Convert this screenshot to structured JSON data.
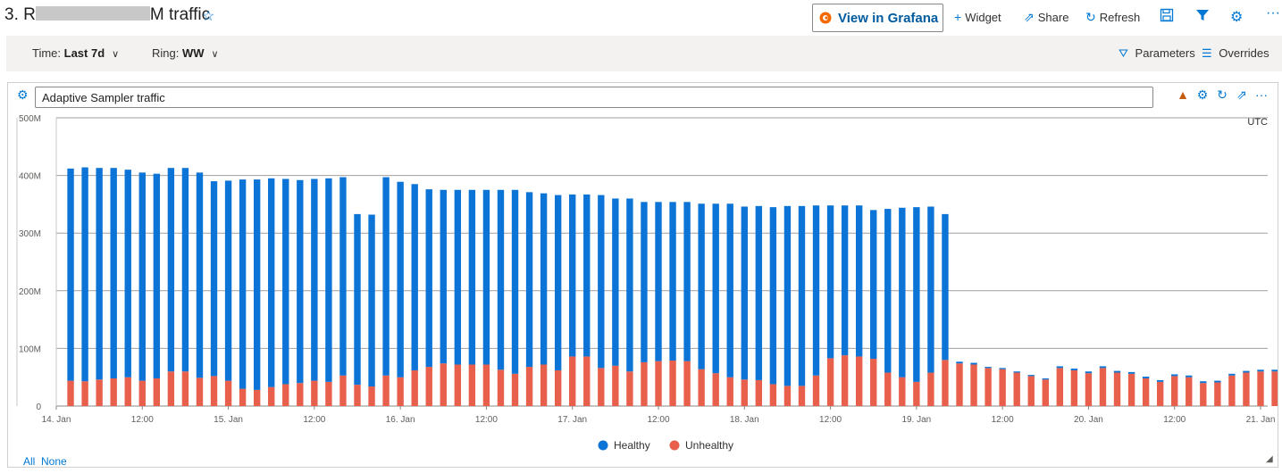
{
  "dashboard": {
    "title_prefix": "3. R",
    "title_suffix": "M traffic",
    "star_icon": "star-outline-icon"
  },
  "toolbar": {
    "grafana_label": "View in Grafana",
    "widget_label": "Widget",
    "share_label": "Share",
    "refresh_label": "Refresh"
  },
  "params": {
    "time_label": "Time: ",
    "time_value": "Last 7d",
    "ring_label": "Ring: ",
    "ring_value": "WW",
    "parameters_label": "Parameters",
    "overrides_label": "Overrides"
  },
  "panel": {
    "title": "Adaptive Sampler traffic",
    "timezone": "UTC",
    "select_all": "All",
    "select_none": "None"
  },
  "colors": {
    "healthy": "#0b74d6",
    "unhealthy": "#e8604c",
    "accent": "#0078d4"
  },
  "chart_data": {
    "type": "bar",
    "stacked": true,
    "interval_hours": 2,
    "x_start": "14. Jan 00:00",
    "ylim": [
      0,
      500
    ],
    "y_unit": "M",
    "y_ticks": [
      "0",
      "100M",
      "200M",
      "300M",
      "400M",
      "500M"
    ],
    "x_ticks": [
      {
        "label": "14. Jan",
        "hour": 0
      },
      {
        "label": "12:00",
        "hour": 12
      },
      {
        "label": "15. Jan",
        "hour": 24
      },
      {
        "label": "12:00",
        "hour": 36
      },
      {
        "label": "16. Jan",
        "hour": 48
      },
      {
        "label": "12:00",
        "hour": 60
      },
      {
        "label": "17. Jan",
        "hour": 72
      },
      {
        "label": "12:00",
        "hour": 84
      },
      {
        "label": "18. Jan",
        "hour": 96
      },
      {
        "label": "12:00",
        "hour": 108
      },
      {
        "label": "19. Jan",
        "hour": 120
      },
      {
        "label": "12:00",
        "hour": 132
      },
      {
        "label": "20. Jan",
        "hour": 144
      },
      {
        "label": "12:00",
        "hour": 156
      },
      {
        "label": "21. Jan",
        "hour": 168
      }
    ],
    "grid": true,
    "legend_position": "bottom-center",
    "series": [
      {
        "name": "Unhealthy",
        "color": "#e8604c",
        "values": [
          44,
          43,
          46,
          48,
          50,
          44,
          48,
          60,
          60,
          49,
          52,
          44,
          30,
          28,
          33,
          38,
          40,
          44,
          42,
          53,
          37,
          34,
          53,
          50,
          62,
          68,
          74,
          72,
          72,
          72,
          63,
          56,
          68,
          72,
          62,
          86,
          86,
          66,
          70,
          60,
          76,
          78,
          79,
          78,
          64,
          57,
          50,
          46,
          45,
          38,
          35,
          35,
          53,
          83,
          88,
          86,
          82,
          58,
          50,
          42,
          58,
          80,
          74,
          72,
          66,
          64,
          58,
          52,
          46,
          66,
          62,
          57,
          66,
          58,
          56,
          48,
          42,
          52,
          50,
          40,
          41,
          53,
          58,
          60,
          60,
          46
        ]
      },
      {
        "name": "Healthy",
        "color": "#0b74d6",
        "values": [
          368,
          371,
          367,
          365,
          360,
          361,
          355,
          353,
          353,
          356,
          338,
          347,
          363,
          365,
          362,
          356,
          352,
          350,
          353,
          344,
          296,
          298,
          344,
          339,
          323,
          308,
          301,
          303,
          303,
          303,
          312,
          319,
          303,
          297,
          304,
          281,
          281,
          300,
          290,
          300,
          278,
          276,
          275,
          276,
          287,
          294,
          301,
          300,
          302,
          307,
          312,
          312,
          295,
          265,
          260,
          262,
          258,
          284,
          294,
          303,
          288,
          253,
          3,
          3,
          2,
          2,
          2,
          2,
          2,
          3,
          3,
          3,
          3,
          3,
          3,
          3,
          3,
          3,
          3,
          3,
          3,
          3,
          3,
          3,
          3,
          0
        ]
      }
    ]
  }
}
